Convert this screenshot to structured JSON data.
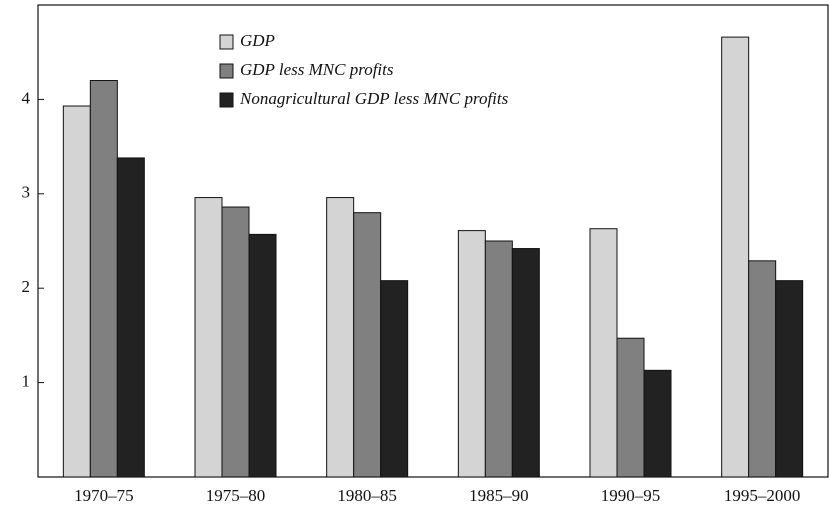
{
  "chart_data": {
    "type": "bar",
    "categories": [
      "1970–75",
      "1975–80",
      "1980–85",
      "1985–90",
      "1990–95",
      "1995–2000"
    ],
    "series": [
      {
        "name": "GDP",
        "color": "#d4d4d4",
        "values": [
          3.93,
          2.96,
          2.96,
          2.61,
          2.63,
          4.66
        ]
      },
      {
        "name": "GDP less MNC profits",
        "color": "#808080",
        "values": [
          4.2,
          2.86,
          2.8,
          2.5,
          1.47,
          2.29
        ]
      },
      {
        "name": "Nonagricultural GDP less MNC profits",
        "color": "#222222",
        "values": [
          3.38,
          2.57,
          2.08,
          2.42,
          1.13,
          2.08
        ]
      }
    ],
    "ylim": [
      0,
      5
    ],
    "yticks": [
      1,
      2,
      3,
      4
    ],
    "legend": "upper left"
  }
}
